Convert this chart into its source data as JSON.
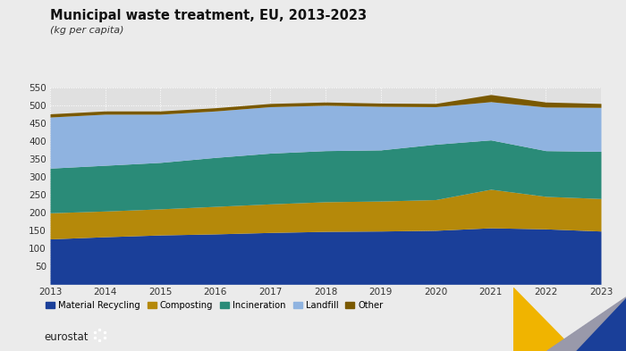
{
  "title": "Municipal waste treatment, EU, 2013-2023",
  "subtitle": "(kg per capita)",
  "years": [
    2013,
    2014,
    2015,
    2016,
    2017,
    2018,
    2019,
    2020,
    2021,
    2022,
    2023
  ],
  "material_recycling": [
    127,
    133,
    138,
    141,
    145,
    148,
    149,
    151,
    158,
    155,
    149
  ],
  "composting": [
    73,
    72,
    73,
    77,
    80,
    83,
    84,
    86,
    108,
    91,
    91
  ],
  "incineration": [
    125,
    128,
    130,
    137,
    142,
    143,
    143,
    155,
    138,
    128,
    132
  ],
  "landfill": [
    143,
    143,
    135,
    130,
    130,
    127,
    122,
    105,
    107,
    122,
    123
  ],
  "other": [
    9,
    9,
    9,
    9,
    9,
    9,
    9,
    9,
    20,
    14,
    11
  ],
  "colors": {
    "material_recycling": "#1a3f99",
    "composting": "#b5890a",
    "incineration": "#2a8b78",
    "landfill": "#8fb3e0",
    "other": "#7a5900"
  },
  "ylim": [
    0,
    550
  ],
  "yticks": [
    0,
    50,
    100,
    150,
    200,
    250,
    300,
    350,
    400,
    450,
    500,
    550
  ],
  "bg_color": "#ebebeb",
  "plot_bg_color": "#e0e0e0",
  "grid_color": "#ffffff",
  "legend_labels": [
    "Material Recycling",
    "Composting",
    "Incineration",
    "Landfill",
    "Other"
  ]
}
